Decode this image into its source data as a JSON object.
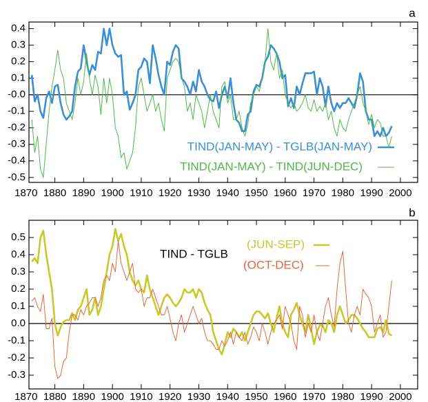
{
  "chart_data": [
    {
      "type": "line",
      "title": "a",
      "x": [
        1872,
        1873,
        1874,
        1875,
        1876,
        1877,
        1878,
        1879,
        1880,
        1881,
        1882,
        1883,
        1884,
        1885,
        1886,
        1887,
        1888,
        1889,
        1890,
        1891,
        1892,
        1893,
        1894,
        1895,
        1896,
        1897,
        1898,
        1899,
        1900,
        1901,
        1902,
        1903,
        1904,
        1905,
        1906,
        1907,
        1908,
        1909,
        1910,
        1911,
        1912,
        1913,
        1914,
        1915,
        1916,
        1917,
        1918,
        1919,
        1920,
        1921,
        1922,
        1923,
        1924,
        1925,
        1926,
        1927,
        1928,
        1929,
        1930,
        1931,
        1932,
        1933,
        1934,
        1935,
        1936,
        1937,
        1938,
        1939,
        1940,
        1941,
        1942,
        1943,
        1944,
        1945,
        1946,
        1947,
        1948,
        1949,
        1950,
        1951,
        1952,
        1953,
        1954,
        1955,
        1956,
        1957,
        1958,
        1959,
        1960,
        1961,
        1962,
        1963,
        1964,
        1965,
        1966,
        1967,
        1968,
        1969,
        1970,
        1971,
        1972,
        1973,
        1974,
        1975,
        1976,
        1977,
        1978,
        1979,
        1980,
        1981,
        1982,
        1983,
        1984,
        1985,
        1986,
        1987,
        1988,
        1989,
        1990,
        1991,
        1992,
        1993,
        1994,
        1995,
        1996,
        1997
      ],
      "series": [
        {
          "name": "TIND(JAN-MAY) - TGLB(JAN-MAY)",
          "color": "#3b8fd1",
          "width": 2.6,
          "values": [
            0.12,
            -0.04,
            0.0,
            -0.1,
            -0.14,
            -0.02,
            0.02,
            -0.05,
            0.05,
            0.06,
            -0.05,
            -0.12,
            -0.15,
            -0.13,
            -0.1,
            0.05,
            0.14,
            0.16,
            0.3,
            0.2,
            0.12,
            0.18,
            0.15,
            0.26,
            0.25,
            0.4,
            0.3,
            0.4,
            0.3,
            0.25,
            0.23,
            0.24,
            0.0,
            0.02,
            -0.09,
            -0.05,
            0.0,
            0.15,
            0.17,
            0.22,
            0.2,
            0.07,
            0.3,
            0.22,
            0.12,
            0.05,
            0.0,
            0.2,
            0.18,
            0.26,
            0.3,
            0.28,
            0.1,
            0.08,
            0.05,
            0.0,
            0.08,
            0.02,
            0.15,
            0.08,
            0.05,
            0.0,
            -0.03,
            -0.04,
            0.02,
            -0.08,
            0.0,
            0.05,
            -0.02,
            0.1,
            -0.05,
            -0.15,
            -0.17,
            -0.22,
            -0.22,
            -0.12,
            -0.1,
            0.02,
            0.06,
            0.05,
            0.1,
            0.2,
            0.23,
            0.3,
            0.28,
            0.25,
            0.2,
            0.1,
            0.12,
            -0.07,
            -0.02,
            -0.08,
            0.05,
            0.0,
            0.07,
            0.13,
            0.13,
            0.13,
            0.14,
            0.0,
            0.1,
            0.05,
            -0.07,
            0.05,
            -0.05,
            -0.1,
            -0.05,
            -0.08,
            -0.05,
            -0.05,
            -0.02,
            -0.05,
            -0.08,
            0.0,
            0.13,
            0.08,
            -0.1,
            -0.15,
            -0.15,
            -0.25,
            -0.22,
            -0.25,
            -0.2,
            -0.25,
            -0.23,
            -0.19
          ]
        },
        {
          "name": "TIND(JAN-MAY) - TIND(JUN-DEC)",
          "color": "#4cb848",
          "width": 1,
          "values": [
            -0.15,
            -0.35,
            -0.25,
            -0.45,
            -0.5,
            -0.3,
            -0.1,
            0.05,
            0.15,
            0.27,
            0.15,
            0.1,
            -0.05,
            -0.1,
            -0.15,
            -0.05,
            0.1,
            0.0,
            0.08,
            0.25,
            0.1,
            0.0,
            0.12,
            0.05,
            -0.12,
            0.1,
            -0.05,
            0.1,
            0.0,
            -0.2,
            -0.25,
            -0.38,
            -0.35,
            -0.45,
            -0.4,
            -0.35,
            -0.2,
            0.05,
            0.1,
            0.0,
            -0.1,
            -0.05,
            0.0,
            -0.1,
            -0.05,
            -0.15,
            -0.22,
            0.1,
            0.15,
            0.2,
            0.22,
            0.2,
            0.1,
            0.05,
            -0.1,
            -0.05,
            -0.15,
            0.0,
            -0.05,
            -0.1,
            -0.2,
            -0.1,
            0.0,
            -0.1,
            -0.15,
            -0.2,
            0.05,
            0.08,
            -0.05,
            0.0,
            -0.15,
            -0.15,
            -0.1,
            -0.2,
            -0.25,
            -0.18,
            -0.05,
            0.0,
            0.05,
            0.02,
            0.1,
            0.2,
            0.4,
            0.2,
            0.15,
            0.25,
            0.1,
            0.15,
            0.0,
            -0.05,
            -0.08,
            -0.05,
            -0.1,
            -0.08,
            -0.05,
            0.0,
            -0.08,
            -0.1,
            -0.03,
            -0.1,
            -0.07,
            -0.1,
            -0.05,
            -0.15,
            -0.1,
            -0.2,
            -0.25,
            -0.15,
            -0.2,
            -0.22,
            -0.15,
            -0.1,
            -0.05,
            0.0,
            0.05,
            -0.05,
            -0.1,
            -0.18,
            -0.12,
            -0.2,
            -0.15,
            -0.17,
            -0.25,
            -0.25,
            -0.32,
            -0.25
          ]
        }
      ],
      "xlim": [
        1871,
        2006
      ],
      "ylim": [
        -0.53,
        0.44
      ],
      "xticks": [
        1870,
        1880,
        1890,
        1900,
        1910,
        1920,
        1930,
        1940,
        1950,
        1960,
        1970,
        1980,
        1990,
        2000
      ],
      "yticks": [
        0.4,
        0.3,
        0.2,
        0.1,
        {
          "value": 0,
          "label": "-0.0"
        },
        -0.1,
        -0.2,
        -0.3,
        -0.4,
        -0.5
      ],
      "zero_line": true
    },
    {
      "type": "line",
      "title": "b",
      "annotation": "TIND - TGLB",
      "x": [
        1872,
        1873,
        1874,
        1875,
        1876,
        1877,
        1878,
        1879,
        1880,
        1881,
        1882,
        1883,
        1884,
        1885,
        1886,
        1887,
        1888,
        1889,
        1890,
        1891,
        1892,
        1893,
        1894,
        1895,
        1896,
        1897,
        1898,
        1899,
        1900,
        1901,
        1902,
        1903,
        1904,
        1905,
        1906,
        1907,
        1908,
        1909,
        1910,
        1911,
        1912,
        1913,
        1914,
        1915,
        1916,
        1917,
        1918,
        1919,
        1920,
        1921,
        1922,
        1923,
        1924,
        1925,
        1926,
        1927,
        1928,
        1929,
        1930,
        1931,
        1932,
        1933,
        1934,
        1935,
        1936,
        1937,
        1938,
        1939,
        1940,
        1941,
        1942,
        1943,
        1944,
        1945,
        1946,
        1947,
        1948,
        1949,
        1950,
        1951,
        1952,
        1953,
        1954,
        1955,
        1956,
        1957,
        1958,
        1959,
        1960,
        1961,
        1962,
        1963,
        1964,
        1965,
        1966,
        1967,
        1968,
        1969,
        1970,
        1971,
        1972,
        1973,
        1974,
        1975,
        1976,
        1977,
        1978,
        1979,
        1980,
        1981,
        1982,
        1983,
        1984,
        1985,
        1986,
        1987,
        1988,
        1989,
        1990,
        1991,
        1992,
        1993,
        1994,
        1995,
        1996,
        1997
      ],
      "series": [
        {
          "name": "(JUN-SEP)",
          "color": "#c9c82b",
          "width": 2.6,
          "values": [
            0.36,
            0.38,
            0.35,
            0.5,
            0.54,
            0.4,
            0.3,
            0.2,
            0.0,
            -0.07,
            -0.02,
            0.01,
            0.02,
            0.02,
            0.06,
            0.02,
            0.08,
            0.1,
            0.15,
            0.2,
            0.05,
            0.08,
            0.15,
            0.05,
            0.1,
            0.2,
            0.3,
            0.4,
            0.45,
            0.55,
            0.48,
            0.52,
            0.45,
            0.4,
            0.3,
            0.25,
            0.22,
            0.25,
            0.2,
            0.18,
            0.28,
            0.2,
            0.15,
            0.1,
            0.05,
            0.1,
            0.15,
            0.17,
            0.15,
            0.12,
            0.1,
            0.12,
            0.15,
            0.2,
            0.18,
            0.18,
            0.2,
            0.15,
            0.2,
            0.18,
            0.12,
            0.08,
            0.05,
            -0.05,
            -0.1,
            -0.15,
            -0.18,
            -0.12,
            -0.05,
            -0.08,
            -0.03,
            -0.05,
            -0.08,
            -0.05,
            -0.1,
            -0.05,
            0.0,
            0.05,
            0.07,
            0.07,
            0.05,
            0.03,
            0.06,
            0.0,
            -0.05,
            0.03,
            0.1,
            0.0,
            -0.05,
            -0.08,
            0.05,
            0.08,
            0.12,
            0.05,
            0.0,
            -0.05,
            0.05,
            -0.03,
            -0.12,
            -0.05,
            -0.01,
            -0.01,
            -0.05,
            0.02,
            0.0,
            -0.05,
            0.05,
            0.1,
            0.05,
            0.0,
            0.02,
            0.05,
            0.05,
            0.03,
            0.0,
            -0.03,
            -0.05,
            -0.08,
            -0.08,
            -0.08,
            -0.03,
            -0.02,
            -0.05,
            0.02,
            -0.06,
            -0.07
          ]
        },
        {
          "name": "(OCT-DEC)",
          "color": "#e8633a",
          "width": 1,
          "values": [
            0.13,
            0.15,
            0.1,
            0.07,
            0.17,
            -0.03,
            -0.03,
            0.03,
            -0.25,
            -0.32,
            -0.3,
            -0.22,
            -0.2,
            -0.05,
            0.05,
            0.05,
            0.02,
            0.08,
            0.05,
            0.1,
            0.12,
            0.15,
            0.15,
            0.1,
            0.15,
            0.25,
            0.28,
            0.25,
            0.35,
            0.3,
            0.48,
            0.35,
            0.3,
            0.25,
            0.3,
            0.35,
            0.2,
            0.18,
            0.2,
            0.1,
            0.15,
            0.15,
            0.2,
            0.15,
            0.1,
            0.05,
            0.05,
            0.1,
            0.03,
            -0.05,
            -0.1,
            0.0,
            0.05,
            -0.05,
            0.0,
            0.05,
            0.1,
            0.05,
            0.0,
            0.03,
            -0.05,
            -0.1,
            -0.1,
            -0.12,
            -0.15,
            -0.15,
            -0.1,
            -0.13,
            -0.1,
            -0.05,
            -0.12,
            -0.05,
            -0.08,
            -0.1,
            -0.05,
            -0.12,
            -0.08,
            -0.02,
            -0.05,
            -0.1,
            0.0,
            -0.05,
            -0.12,
            -0.05,
            0.0,
            0.02,
            0.05,
            -0.03,
            0.1,
            0.05,
            0.0,
            -0.1,
            -0.15,
            0.1,
            0.05,
            -0.08,
            0.0,
            -0.05,
            0.05,
            -0.05,
            -0.1,
            0.0,
            0.1,
            0.15,
            0.05,
            -0.02,
            0.2,
            0.35,
            0.42,
            0.2,
            0.0,
            -0.05,
            0.05,
            0.1,
            0.05,
            0.2,
            0.17,
            0.15,
            0.1,
            -0.05,
            0.0,
            0.05,
            -0.08,
            -0.05,
            0.1,
            0.25
          ]
        }
      ],
      "xlim": [
        1871,
        2006
      ],
      "ylim": [
        -0.38,
        0.6
      ],
      "xticks": [
        1870,
        1880,
        1890,
        1900,
        1910,
        1920,
        1930,
        1940,
        1950,
        1960,
        1970,
        1980,
        1990,
        2000
      ],
      "yticks": [
        0.5,
        0.4,
        0.3,
        0.2,
        0.1,
        {
          "value": 0,
          "label": "0.0"
        },
        -0.1,
        -0.2,
        -0.3
      ],
      "zero_line": true
    }
  ]
}
